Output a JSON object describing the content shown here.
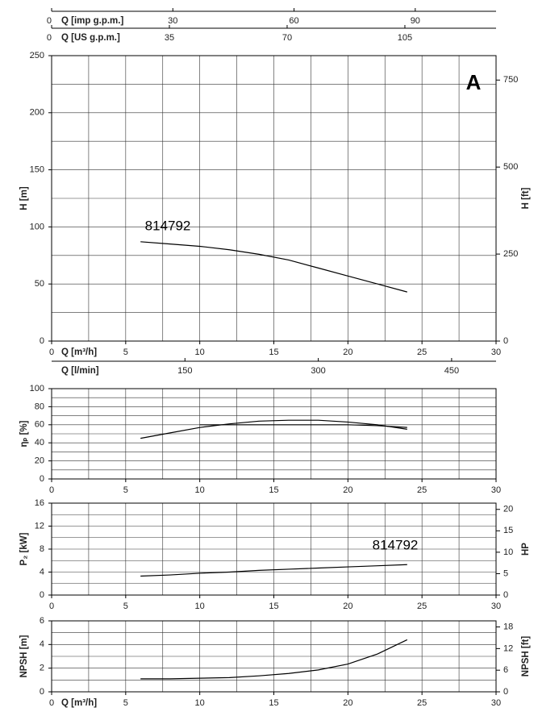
{
  "chart_data": [
    {
      "type": "line",
      "ylabel": "H [m]",
      "y2label": "H [ft]",
      "xlabel": "Q [m³/h]",
      "xlim": [
        0,
        30
      ],
      "xticks": [
        0,
        5,
        10,
        15,
        20,
        25,
        30
      ],
      "ylim": [
        0,
        250
      ],
      "yticks": [
        0,
        50,
        100,
        150,
        200,
        250
      ],
      "y2lim": [
        0,
        820.2
      ],
      "y2ticks": [
        0,
        250,
        500,
        750
      ],
      "grid_step": {
        "x": 2.5,
        "y": 25
      },
      "x": [
        6,
        8,
        10,
        12,
        14,
        16,
        18,
        20,
        22,
        24
      ],
      "series": [
        {
          "color": "#000000",
          "values": [
            87,
            85,
            83,
            80,
            76,
            71,
            64,
            57,
            50,
            43
          ]
        }
      ],
      "annotations": [
        "A",
        "814792"
      ],
      "top_axes": [
        {
          "label": "Q [imp g.p.m.]",
          "lim": [
            0,
            110.0
          ],
          "ticks": [
            0,
            30,
            60,
            90
          ]
        },
        {
          "label": "Q [US g.p.m.]",
          "lim": [
            0,
            132.1
          ],
          "ticks": [
            0,
            35,
            70,
            105
          ]
        }
      ],
      "bottom_axis": {
        "label": "Q [l/min]",
        "lim": [
          0,
          500
        ],
        "ticks": [
          150,
          300,
          450
        ]
      }
    },
    {
      "type": "line",
      "ylabel": "ηₚ [%]",
      "xlim": [
        0,
        30
      ],
      "xticks": [
        0,
        5,
        10,
        15,
        20,
        25,
        30
      ],
      "ylim": [
        0,
        100
      ],
      "yticks": [
        0,
        20,
        40,
        60,
        80,
        100
      ],
      "grid_step": {
        "x": 2.5,
        "y": 10
      },
      "x": [
        6,
        8,
        10,
        12,
        14,
        16,
        18,
        20,
        22,
        24
      ],
      "series": [
        {
          "color": "#000000",
          "values": [
            45,
            51,
            57,
            61,
            64,
            65,
            65,
            63,
            60,
            55
          ]
        },
        {
          "color": "#000000",
          "values": [
            null,
            null,
            60,
            60,
            60,
            60,
            60,
            60,
            59,
            57
          ]
        }
      ]
    },
    {
      "type": "line",
      "ylabel": "P₂ [kW]",
      "y2label": "HP",
      "xlim": [
        0,
        30
      ],
      "xticks": [
        0,
        5,
        10,
        15,
        20,
        25,
        30
      ],
      "ylim": [
        0,
        16
      ],
      "yticks": [
        0,
        4,
        8,
        12,
        16
      ],
      "y2lim": [
        0,
        21.46
      ],
      "y2ticks": [
        0,
        5,
        10,
        15,
        20
      ],
      "grid_step": {
        "x": 2.5,
        "y": 2
      },
      "x": [
        6,
        8,
        10,
        12,
        14,
        16,
        18,
        20,
        22,
        24
      ],
      "series": [
        {
          "color": "#000000",
          "values": [
            3.3,
            3.5,
            3.8,
            4.0,
            4.3,
            4.5,
            4.7,
            4.9,
            5.1,
            5.3
          ]
        }
      ],
      "annotations": [
        "814792"
      ]
    },
    {
      "type": "line",
      "ylabel": "NPSH [m]",
      "y2label": "NPSH [ft]",
      "xlabel": "Q [m³/h]",
      "xlim": [
        0,
        30
      ],
      "xticks": [
        0,
        5,
        10,
        15,
        20,
        25,
        30
      ],
      "ylim": [
        0,
        6
      ],
      "yticks": [
        0,
        2,
        4,
        6
      ],
      "y2lim": [
        0,
        19.69
      ],
      "y2ticks": [
        0,
        6,
        12,
        18
      ],
      "grid_step": {
        "x": 2.5,
        "y": 1
      },
      "x": [
        6,
        8,
        10,
        12,
        14,
        16,
        18,
        20,
        22,
        24
      ],
      "series": [
        {
          "color": "#000000",
          "values": [
            1.1,
            1.1,
            1.15,
            1.2,
            1.35,
            1.55,
            1.85,
            2.35,
            3.2,
            4.4
          ]
        }
      ]
    }
  ]
}
